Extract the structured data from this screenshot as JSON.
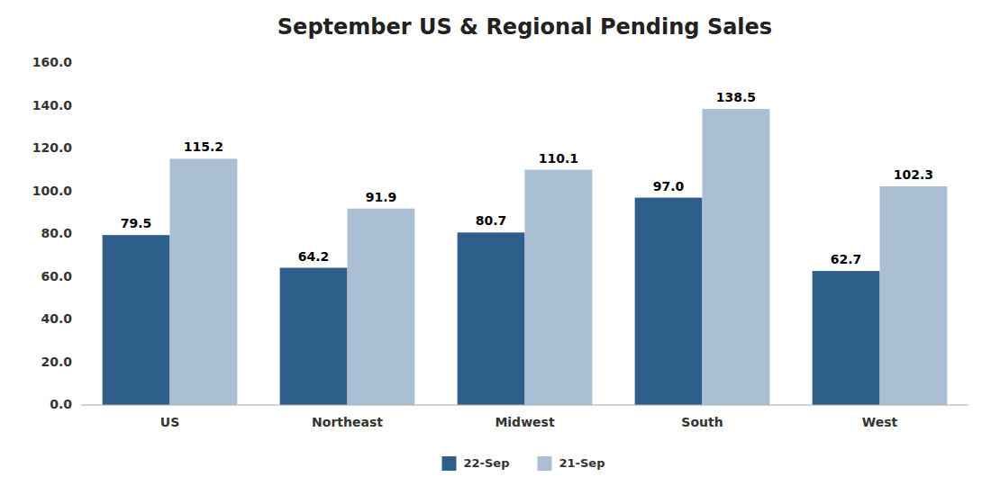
{
  "chart_data": {
    "type": "bar",
    "title": "September US & Regional Pending Sales",
    "categories": [
      "US",
      "Northeast",
      "Midwest",
      "South",
      "West"
    ],
    "series": [
      {
        "name": "22-Sep",
        "color": "#2E5F8A",
        "values": [
          79.5,
          64.2,
          80.7,
          97.0,
          62.7
        ],
        "value_labels": [
          "79.5",
          "64.2",
          "80.7",
          "97.0",
          "62.7"
        ]
      },
      {
        "name": "21-Sep",
        "color": "#AABFD4",
        "values": [
          115.2,
          91.9,
          110.1,
          138.5,
          102.3
        ]
      }
    ],
    "ylim": [
      0,
      160
    ],
    "yticks": [
      {
        "value": 0,
        "label": "0.0"
      },
      {
        "value": 20,
        "label": "20.0"
      },
      {
        "value": 40,
        "label": "40.0"
      },
      {
        "value": 60,
        "label": "60.0"
      },
      {
        "value": 80,
        "label": "80.0"
      },
      {
        "value": 100,
        "label": "100.0"
      },
      {
        "value": 120,
        "label": "120.0"
      },
      {
        "value": 140,
        "label": "140.0"
      },
      {
        "value": 160,
        "label": "160.0"
      }
    ],
    "data_labels": true,
    "legend": "bottom",
    "grid": false
  }
}
